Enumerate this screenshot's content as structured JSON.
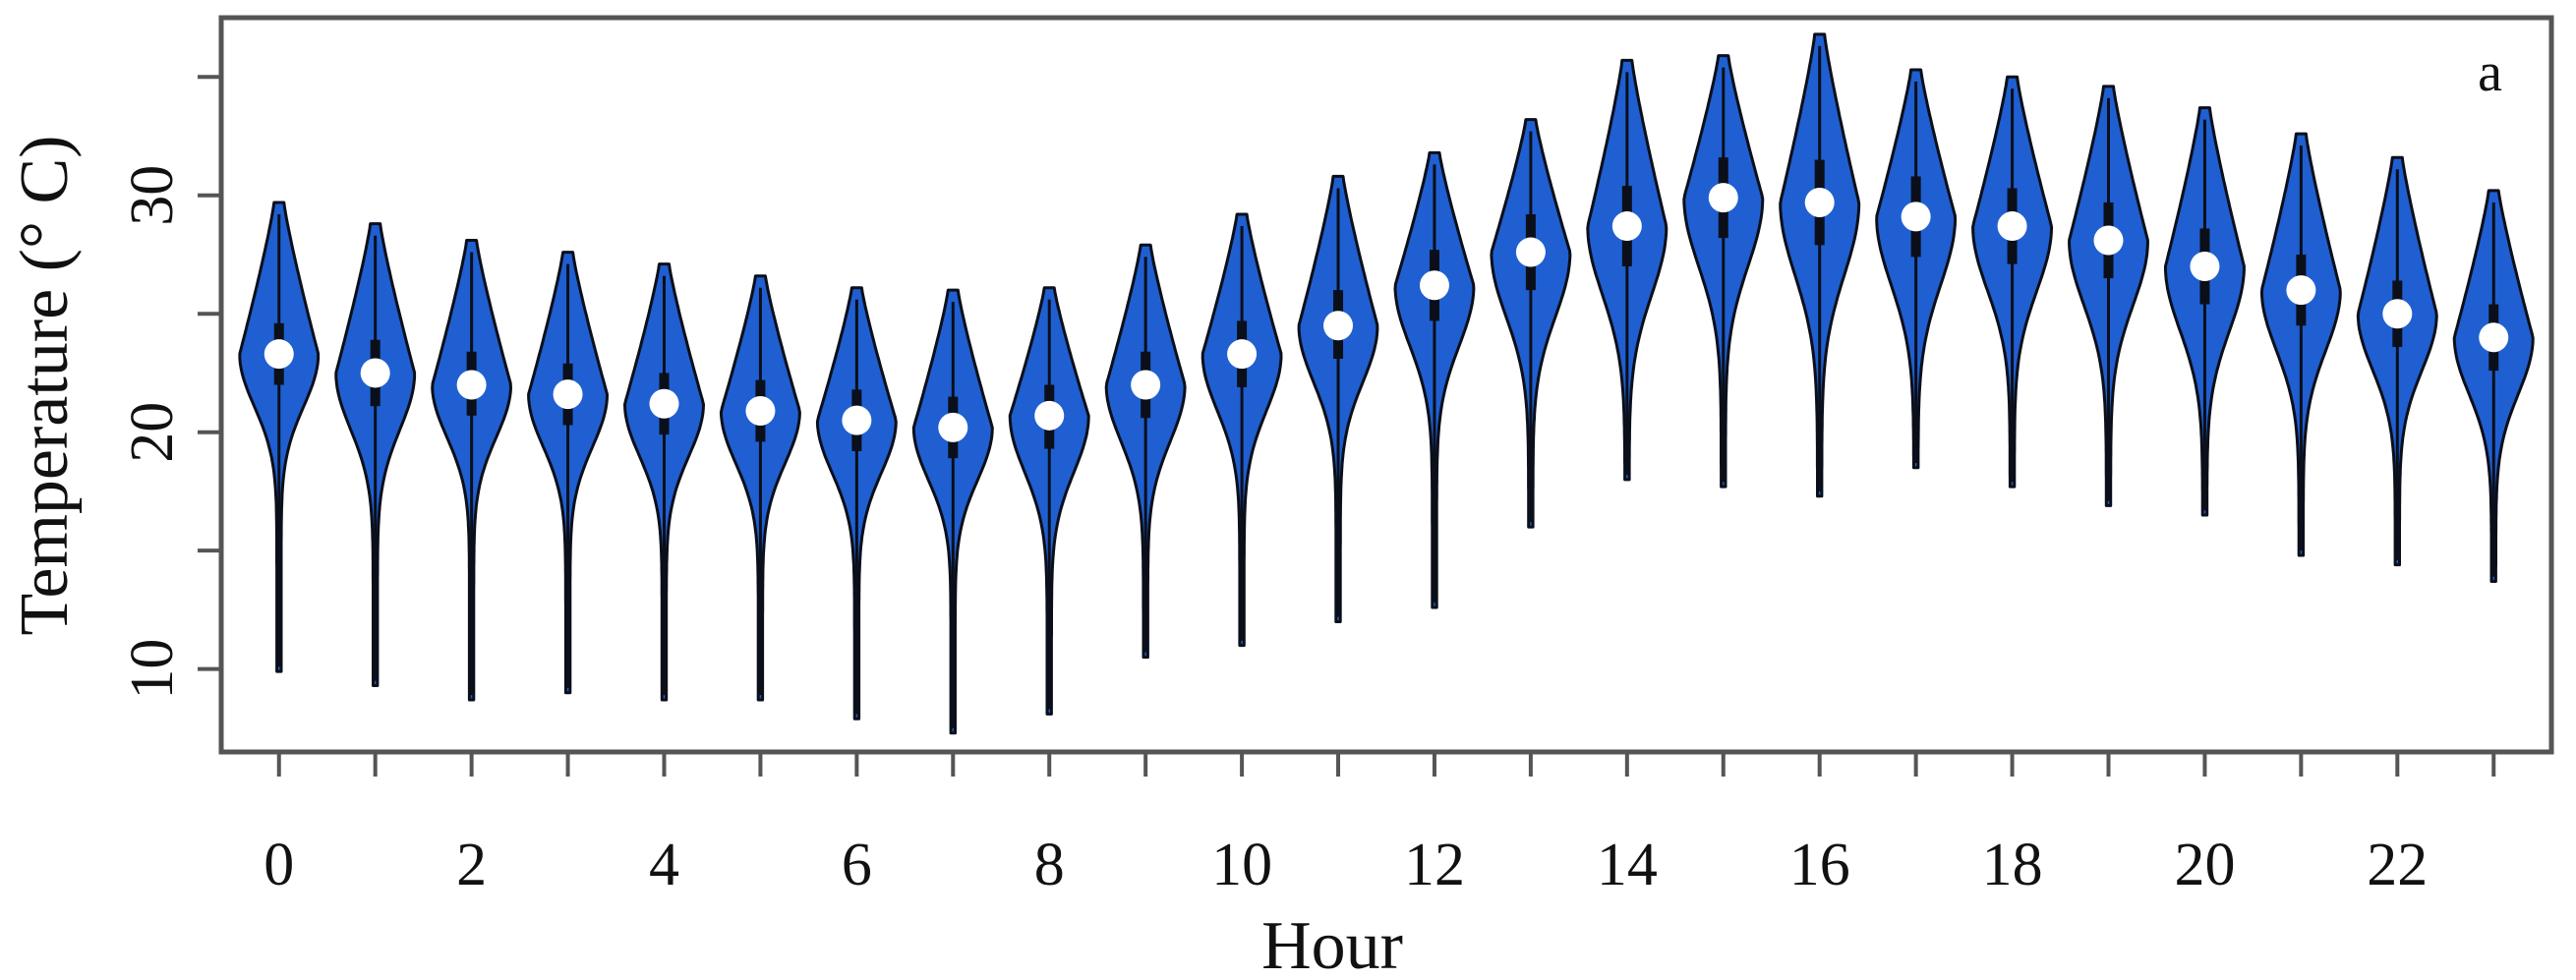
{
  "colors": {
    "violin_fill": "#1f5fd1",
    "violin_stroke": "#0b0f1a",
    "median_dot": "#ffffff",
    "axis": "#555555"
  },
  "chart_data": {
    "type": "violin",
    "title": "",
    "panel_label": "a",
    "xlabel": "Hour",
    "ylabel": "Temperature (° C)",
    "xlim": [
      -0.6,
      23.6
    ],
    "ylim": [
      6.5,
      37.5
    ],
    "x_ticks": [
      0,
      2,
      4,
      6,
      8,
      10,
      12,
      14,
      16,
      18,
      20,
      22
    ],
    "x_tick_labels": [
      "0",
      "2",
      "4",
      "6",
      "8",
      "10",
      "12",
      "14",
      "16",
      "18",
      "20",
      "22"
    ],
    "x_minor_ticks": [
      0,
      1,
      2,
      3,
      4,
      5,
      6,
      7,
      8,
      9,
      10,
      11,
      12,
      13,
      14,
      15,
      16,
      17,
      18,
      19,
      20,
      21,
      22,
      23
    ],
    "y_ticks": [
      10,
      15,
      20,
      25,
      30,
      35
    ],
    "y_tick_labels": [
      "10",
      "",
      "20",
      "",
      "30",
      ""
    ],
    "grid": false,
    "series": [
      {
        "x": 0,
        "min": 9.9,
        "q1": 22.0,
        "median": 23.3,
        "q3": 24.6,
        "max": 29.7,
        "mode": 23.3
      },
      {
        "x": 1,
        "min": 9.3,
        "q1": 21.1,
        "median": 22.5,
        "q3": 23.9,
        "max": 28.8,
        "mode": 22.5
      },
      {
        "x": 2,
        "min": 8.7,
        "q1": 20.7,
        "median": 22.0,
        "q3": 23.4,
        "max": 28.1,
        "mode": 22.0
      },
      {
        "x": 3,
        "min": 9.0,
        "q1": 20.3,
        "median": 21.6,
        "q3": 22.9,
        "max": 27.6,
        "mode": 21.6
      },
      {
        "x": 4,
        "min": 8.7,
        "q1": 19.9,
        "median": 21.2,
        "q3": 22.5,
        "max": 27.1,
        "mode": 21.2
      },
      {
        "x": 5,
        "min": 8.7,
        "q1": 19.6,
        "median": 20.9,
        "q3": 22.2,
        "max": 26.6,
        "mode": 20.9
      },
      {
        "x": 6,
        "min": 7.9,
        "q1": 19.2,
        "median": 20.5,
        "q3": 21.8,
        "max": 26.1,
        "mode": 20.5
      },
      {
        "x": 7,
        "min": 7.3,
        "q1": 18.9,
        "median": 20.2,
        "q3": 21.5,
        "max": 26.0,
        "mode": 20.2
      },
      {
        "x": 8,
        "min": 8.1,
        "q1": 19.3,
        "median": 20.7,
        "q3": 22.0,
        "max": 26.1,
        "mode": 20.7
      },
      {
        "x": 9,
        "min": 10.5,
        "q1": 20.6,
        "median": 22.0,
        "q3": 23.4,
        "max": 27.9,
        "mode": 22.0
      },
      {
        "x": 10,
        "min": 11.0,
        "q1": 21.9,
        "median": 23.3,
        "q3": 24.7,
        "max": 29.2,
        "mode": 23.3
      },
      {
        "x": 11,
        "min": 12.0,
        "q1": 23.1,
        "median": 24.5,
        "q3": 26.0,
        "max": 30.8,
        "mode": 24.5
      },
      {
        "x": 12,
        "min": 12.6,
        "q1": 24.7,
        "median": 26.2,
        "q3": 27.7,
        "max": 31.8,
        "mode": 26.2
      },
      {
        "x": 13,
        "min": 16.0,
        "q1": 26.0,
        "median": 27.6,
        "q3": 29.2,
        "max": 33.2,
        "mode": 27.6
      },
      {
        "x": 14,
        "min": 18.0,
        "q1": 27.0,
        "median": 28.7,
        "q3": 30.4,
        "max": 35.7,
        "mode": 28.7
      },
      {
        "x": 15,
        "min": 17.7,
        "q1": 28.2,
        "median": 29.9,
        "q3": 31.6,
        "max": 35.9,
        "mode": 29.9
      },
      {
        "x": 16,
        "min": 17.3,
        "q1": 27.9,
        "median": 29.7,
        "q3": 31.5,
        "max": 36.8,
        "mode": 29.7
      },
      {
        "x": 17,
        "min": 18.5,
        "q1": 27.4,
        "median": 29.1,
        "q3": 30.8,
        "max": 35.3,
        "mode": 29.1
      },
      {
        "x": 18,
        "min": 17.7,
        "q1": 27.1,
        "median": 28.7,
        "q3": 30.3,
        "max": 35.0,
        "mode": 28.7
      },
      {
        "x": 19,
        "min": 16.9,
        "q1": 26.5,
        "median": 28.1,
        "q3": 29.7,
        "max": 34.6,
        "mode": 28.1
      },
      {
        "x": 20,
        "min": 16.5,
        "q1": 25.4,
        "median": 27.0,
        "q3": 28.6,
        "max": 33.7,
        "mode": 27.0
      },
      {
        "x": 21,
        "min": 14.8,
        "q1": 24.5,
        "median": 26.0,
        "q3": 27.5,
        "max": 32.6,
        "mode": 26.0
      },
      {
        "x": 22,
        "min": 14.4,
        "q1": 23.6,
        "median": 25.0,
        "q3": 26.4,
        "max": 31.6,
        "mode": 25.0
      },
      {
        "x": 23,
        "min": 13.7,
        "q1": 22.6,
        "median": 24.0,
        "q3": 25.4,
        "max": 30.2,
        "mode": 24.0
      }
    ]
  }
}
